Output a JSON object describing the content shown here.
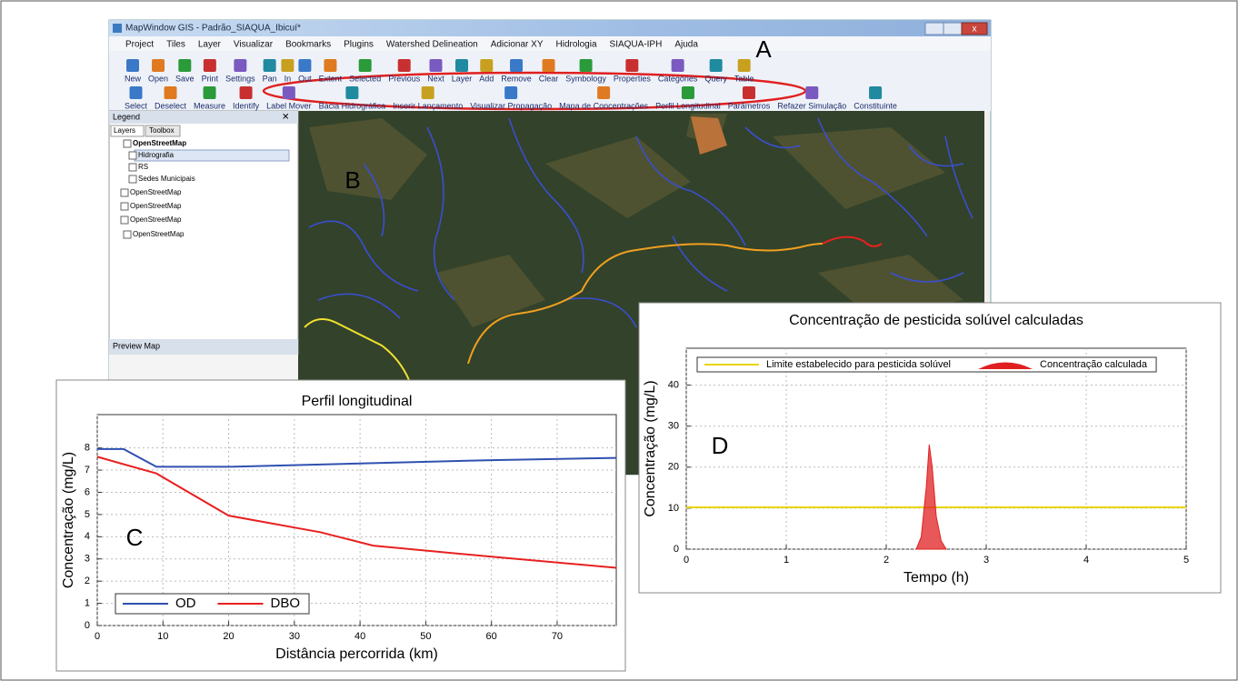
{
  "window": {
    "title": "MapWindow GIS - Padrão_SIAQUA_Ibicuí*"
  },
  "menu": [
    "Project",
    "Tiles",
    "Layer",
    "Visualizar",
    "Bookmarks",
    "Plugins",
    "Watershed Delineation",
    "Adicionar XY",
    "Hidrologia",
    "SIAQUA-IPH",
    "Ajuda"
  ],
  "toolbar": {
    "row1": [
      "New",
      "Open",
      "Save",
      "Print",
      "Settings",
      "Pan",
      "In",
      "Out",
      "Extent",
      "Selected",
      "Previous",
      "Next",
      "Layer",
      "Add",
      "Remove",
      "Clear",
      "Symbology",
      "Properties",
      "Categories",
      "Query",
      "Table"
    ],
    "row2": [
      "Select",
      "Deselect",
      "Measure",
      "Identify",
      "Label Mover",
      "Bacia Hidrográfica",
      "Inserir Lançamento",
      "Visualizar Propagação",
      "Mapa de Concentrações",
      "Perfil Longitudinal",
      "Parâmetros",
      "Refazer Simulação",
      "Constituinte"
    ]
  },
  "legend_panel": {
    "title": "Legend",
    "tabs": [
      "Layers",
      "Toolbox"
    ],
    "layers": [
      "OpenStreetMap",
      "Hidrografia",
      "RS",
      "Sedes Municipais",
      "OpenStreetMap",
      "OpenStreetMap",
      "OpenStreetMap",
      "OpenStreetMap"
    ],
    "preview": "Preview Map"
  },
  "panel_labels": [
    "A",
    "B",
    "C",
    "D"
  ],
  "chart_data": [
    {
      "type": "line",
      "title": "Perfil longitudinal",
      "x_label": "Distância percorrida (km)",
      "y_label": "Concentração (mg/L)",
      "xlim": [
        0,
        79
      ],
      "ylim": [
        0,
        9.5
      ],
      "xticks": [
        0,
        10,
        20,
        30,
        40,
        50,
        60,
        70
      ],
      "yticks": [
        0,
        1,
        2,
        3,
        4,
        5,
        6,
        7,
        8
      ],
      "grid": true,
      "legend": "lower left",
      "series": [
        {
          "name": "OD",
          "color": "#3050b0",
          "x": [
            0,
            4,
            9,
            20,
            40,
            60,
            79
          ],
          "values": [
            7.95,
            7.95,
            7.15,
            7.15,
            7.3,
            7.45,
            7.55
          ]
        },
        {
          "name": "DBO",
          "color": "#e82020",
          "x": [
            0,
            9,
            20,
            34,
            42,
            60,
            79
          ],
          "values": [
            7.6,
            6.85,
            4.95,
            4.2,
            3.6,
            3.1,
            2.6
          ]
        }
      ]
    },
    {
      "type": "line",
      "title": "Concentração de pesticida solúvel calculadas",
      "x_label": "Tempo (h)",
      "y_label": "Concentração (mg/L)",
      "xlim": [
        0,
        5
      ],
      "ylim": [
        0,
        49
      ],
      "xticks": [
        0,
        1,
        2,
        3,
        4,
        5
      ],
      "yticks": [
        0,
        10,
        20,
        30,
        40
      ],
      "grid": true,
      "legend": "upper center",
      "series": [
        {
          "name": "Limite estabelecido para pesticida solúvel",
          "color": "#e8d400",
          "x": [
            0,
            5
          ],
          "values": [
            10.2,
            10.2
          ]
        },
        {
          "name": "Concentração calculada",
          "color": "#e02020",
          "style": "area",
          "x": [
            2.3,
            2.35,
            2.4,
            2.43,
            2.46,
            2.5,
            2.55,
            2.6
          ],
          "values": [
            0,
            3,
            15,
            25.5,
            20,
            8,
            2,
            0
          ]
        }
      ]
    }
  ]
}
